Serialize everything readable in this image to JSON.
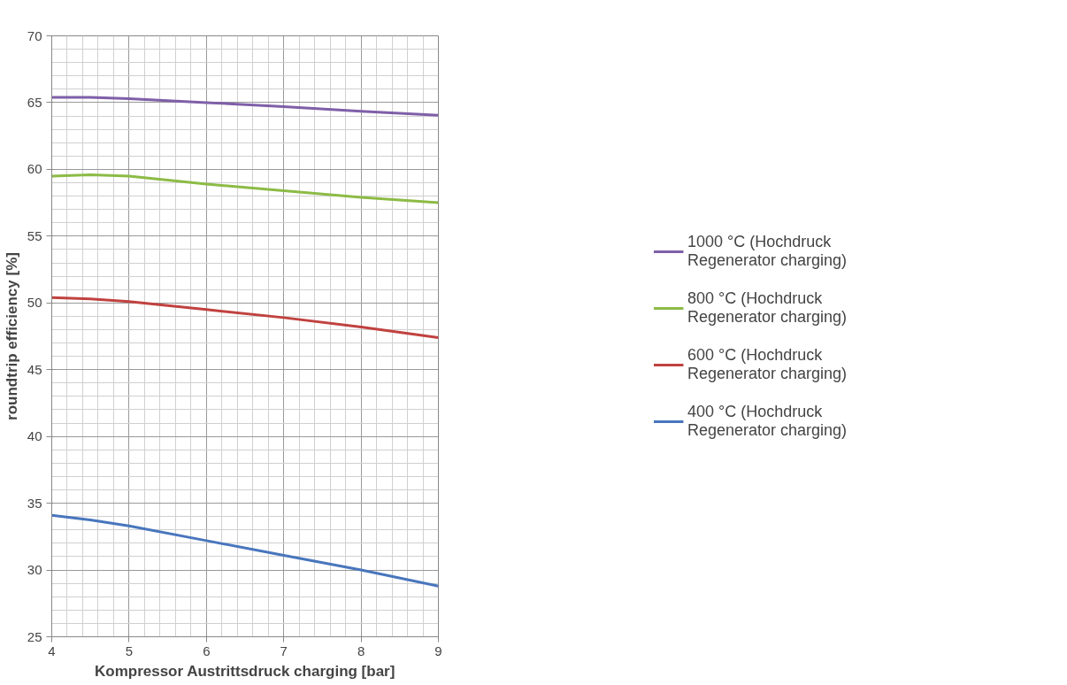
{
  "chart_data": {
    "type": "line",
    "xlabel": "Kompressor Austrittsdruck charging [bar]",
    "ylabel": "roundtrip efficiency [%]",
    "x": [
      4,
      4.5,
      5,
      6,
      7,
      8,
      9
    ],
    "series": [
      {
        "name": "1000 °C (Hochdruck Regenerator charging)",
        "color": "#7f5fa8",
        "values": [
          65.4,
          65.4,
          65.3,
          65.0,
          64.7,
          64.35,
          64.05
        ]
      },
      {
        "name": "800 °C (Hochdruck Regenerator charging)",
        "color": "#8cbb46",
        "values": [
          59.5,
          59.6,
          59.5,
          58.9,
          58.4,
          57.9,
          57.5
        ]
      },
      {
        "name": "600 °C (Hochdruck Regenerator charging)",
        "color": "#c0423f",
        "values": [
          50.4,
          50.3,
          50.1,
          49.5,
          48.9,
          48.2,
          47.4
        ]
      },
      {
        "name": "400 °C (Hochdruck Regenerator charging)",
        "color": "#4876bd",
        "values": [
          34.1,
          33.75,
          33.3,
          32.2,
          31.1,
          30.0,
          28.8
        ]
      }
    ],
    "xlim": [
      4,
      9
    ],
    "ylim": [
      25,
      70
    ],
    "xticks": [
      4,
      5,
      6,
      7,
      8,
      9
    ],
    "yticks": [
      25,
      30,
      35,
      40,
      45,
      50,
      55,
      60,
      65,
      70
    ],
    "grid": true,
    "legend": "right",
    "marker": "none",
    "line_style": "solid"
  }
}
